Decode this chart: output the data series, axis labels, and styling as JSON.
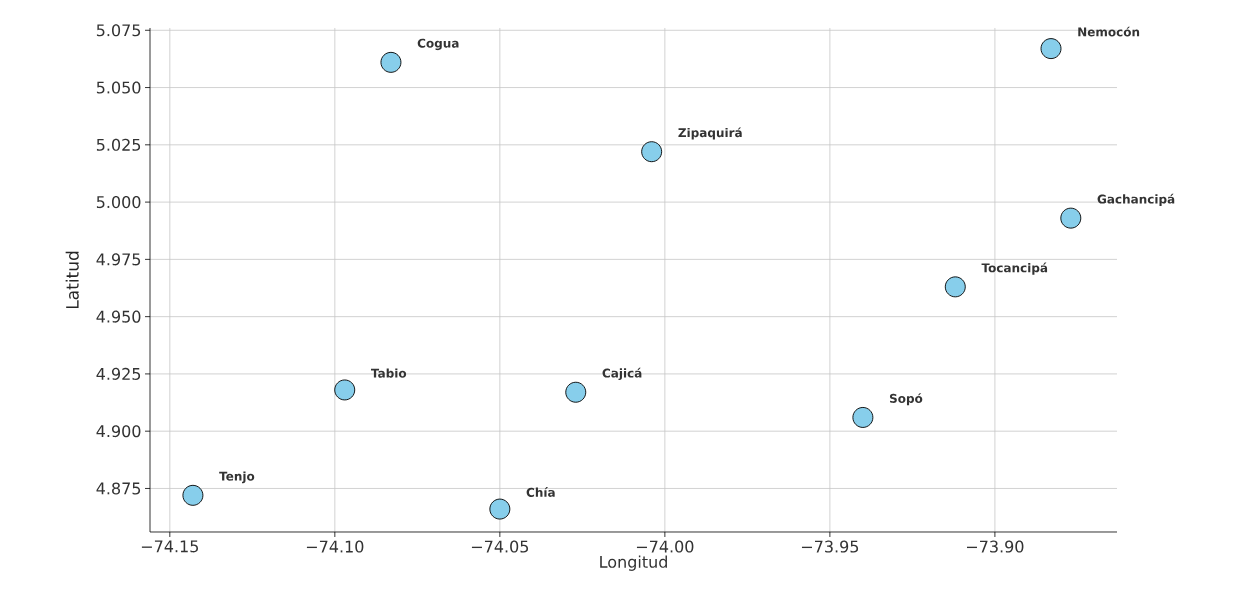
{
  "chart_data": {
    "type": "scatter",
    "xlabel": "Longitud",
    "ylabel": "Latitud",
    "x": [
      -74.083,
      -74.004,
      -73.883,
      -73.877,
      -73.912,
      -74.097,
      -74.143,
      -74.05,
      -74.027,
      -73.94
    ],
    "values": [
      5.061,
      5.022,
      5.067,
      4.993,
      4.963,
      4.918,
      4.872,
      4.866,
      4.917,
      4.906
    ],
    "color": "#87ceeb",
    "marker": "circle",
    "grid": true,
    "xlim": [
      -74.156,
      -73.863
    ],
    "ylim": [
      4.856,
      5.076
    ],
    "xticks": [
      {
        "value": -74.15,
        "label": "−74.15"
      },
      {
        "value": -74.1,
        "label": "−74.10"
      },
      {
        "value": -74.05,
        "label": "−74.05"
      },
      {
        "value": -74.0,
        "label": "−74.00"
      },
      {
        "value": -73.95,
        "label": "−73.95"
      },
      {
        "value": -73.9,
        "label": "−73.90"
      }
    ],
    "yticks": [
      {
        "value": 4.875,
        "label": "4.875"
      },
      {
        "value": 4.9,
        "label": "4.900"
      },
      {
        "value": 4.925,
        "label": "4.925"
      },
      {
        "value": 4.95,
        "label": "4.950"
      },
      {
        "value": 4.975,
        "label": "4.975"
      },
      {
        "value": 5.0,
        "label": "5.000"
      },
      {
        "value": 5.025,
        "label": "5.025"
      },
      {
        "value": 5.05,
        "label": "5.050"
      },
      {
        "value": 5.075,
        "label": "5.075"
      }
    ],
    "annotations": [
      {
        "text": "Cogua",
        "x": -74.083,
        "y": 5.061
      },
      {
        "text": "Zipaquirá",
        "x": -74.004,
        "y": 5.022
      },
      {
        "text": "Nemocón",
        "x": -73.883,
        "y": 5.067
      },
      {
        "text": "Gachancipá",
        "x": -73.877,
        "y": 4.993
      },
      {
        "text": "Tocancipá",
        "x": -73.912,
        "y": 4.963
      },
      {
        "text": "Tabio",
        "x": -74.097,
        "y": 4.918
      },
      {
        "text": "Tenjo",
        "x": -74.143,
        "y": 4.872
      },
      {
        "text": "Chía",
        "x": -74.05,
        "y": 4.866
      },
      {
        "text": "Cajicá",
        "x": -74.027,
        "y": 4.917
      },
      {
        "text": "Sopó",
        "x": -73.94,
        "y": 4.906
      }
    ]
  }
}
